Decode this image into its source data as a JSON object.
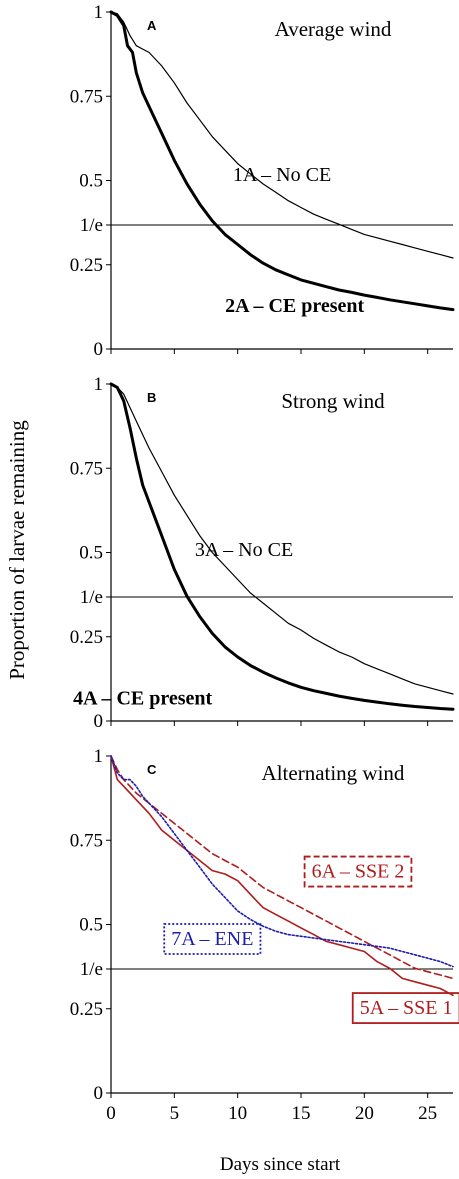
{
  "ylabel": "Proportion of larvae remaining",
  "xlabel": "Days since start",
  "x_ticks": [
    0,
    5,
    10,
    15,
    20,
    25
  ],
  "chart_data": [
    {
      "type": "line",
      "panel_letter": "A",
      "title": "Average wind",
      "xlim": [
        0,
        27
      ],
      "ylim": [
        0,
        1
      ],
      "y_ticks": [
        {
          "label": "1",
          "value": 1
        },
        {
          "label": "0.75",
          "value": 0.75
        },
        {
          "label": "0.5",
          "value": 0.5
        },
        {
          "label": "1/e",
          "value": 0.368
        },
        {
          "label": "0.25",
          "value": 0.25
        },
        {
          "label": "0",
          "value": 0
        }
      ],
      "reference_line": 0.368,
      "grid": false,
      "series": [
        {
          "name": "1A – No CE",
          "color": "#000000",
          "width": 1.2,
          "dash": "",
          "x": [
            0,
            0.5,
            1,
            1.5,
            2,
            2.5,
            3,
            4,
            5,
            6,
            7,
            8,
            9,
            10,
            11,
            12,
            13,
            14,
            15,
            16,
            17,
            18,
            19,
            20,
            21,
            22,
            23,
            24,
            25,
            26,
            27
          ],
          "y": [
            1,
            0.995,
            0.97,
            0.93,
            0.9,
            0.89,
            0.88,
            0.84,
            0.79,
            0.73,
            0.68,
            0.63,
            0.59,
            0.55,
            0.52,
            0.49,
            0.465,
            0.44,
            0.42,
            0.4,
            0.385,
            0.37,
            0.355,
            0.34,
            0.33,
            0.32,
            0.31,
            0.3,
            0.29,
            0.28,
            0.27
          ]
        },
        {
          "name": "2A – CE present",
          "color": "#000000",
          "width": 3,
          "dash": "",
          "x": [
            0,
            0.5,
            1,
            1.3,
            1.7,
            2,
            2.5,
            3,
            4,
            5,
            6,
            7,
            8,
            9,
            10,
            11,
            12,
            13,
            14,
            15,
            16,
            17,
            18,
            19,
            20,
            21,
            22,
            23,
            24,
            25,
            26,
            27
          ],
          "y": [
            1,
            0.99,
            0.96,
            0.9,
            0.88,
            0.82,
            0.76,
            0.72,
            0.64,
            0.56,
            0.49,
            0.43,
            0.38,
            0.34,
            0.31,
            0.28,
            0.255,
            0.235,
            0.22,
            0.205,
            0.195,
            0.185,
            0.175,
            0.168,
            0.16,
            0.153,
            0.146,
            0.14,
            0.134,
            0.128,
            0.122,
            0.117
          ]
        }
      ],
      "annotations": [
        {
          "text": "1A – No CE",
          "x": 13.5,
          "y": 0.52,
          "bold": false
        },
        {
          "text": "2A – CE present",
          "x": 14.5,
          "y": 0.13,
          "bold": true
        }
      ]
    },
    {
      "type": "line",
      "panel_letter": "B",
      "title": "Strong wind",
      "xlim": [
        0,
        27
      ],
      "ylim": [
        0,
        1
      ],
      "y_ticks": [
        {
          "label": "1",
          "value": 1
        },
        {
          "label": "0.75",
          "value": 0.75
        },
        {
          "label": "0.5",
          "value": 0.5
        },
        {
          "label": "1/e",
          "value": 0.368
        },
        {
          "label": "0.25",
          "value": 0.25
        },
        {
          "label": "0",
          "value": 0
        }
      ],
      "reference_line": 0.368,
      "grid": false,
      "series": [
        {
          "name": "3A – No CE",
          "color": "#000000",
          "width": 1.2,
          "dash": "",
          "x": [
            0,
            0.5,
            1,
            1.5,
            2,
            3,
            4,
            5,
            6,
            7,
            8,
            9,
            10,
            11,
            12,
            13,
            14,
            15,
            16,
            17,
            18,
            19,
            20,
            21,
            22,
            23,
            24,
            25,
            26,
            27
          ],
          "y": [
            1,
            0.99,
            0.97,
            0.93,
            0.89,
            0.81,
            0.74,
            0.67,
            0.61,
            0.55,
            0.5,
            0.46,
            0.42,
            0.38,
            0.35,
            0.32,
            0.29,
            0.27,
            0.245,
            0.225,
            0.205,
            0.19,
            0.17,
            0.155,
            0.14,
            0.125,
            0.11,
            0.1,
            0.09,
            0.08
          ]
        },
        {
          "name": "4A – CE present",
          "color": "#000000",
          "width": 3,
          "dash": "",
          "x": [
            0,
            0.5,
            1,
            1.5,
            2,
            2.5,
            3,
            4,
            5,
            6,
            7,
            8,
            9,
            10,
            11,
            12,
            13,
            14,
            15,
            16,
            17,
            18,
            19,
            20,
            21,
            22,
            23,
            24,
            25,
            26,
            27
          ],
          "y": [
            1,
            0.99,
            0.95,
            0.87,
            0.78,
            0.7,
            0.65,
            0.55,
            0.45,
            0.37,
            0.31,
            0.26,
            0.22,
            0.19,
            0.165,
            0.145,
            0.128,
            0.113,
            0.1,
            0.09,
            0.082,
            0.074,
            0.067,
            0.061,
            0.056,
            0.051,
            0.047,
            0.043,
            0.04,
            0.037,
            0.035
          ]
        }
      ],
      "annotations": [
        {
          "text": "3A – No CE",
          "x": 10.5,
          "y": 0.51,
          "bold": false
        },
        {
          "text": "4A – CE present",
          "x": 2.5,
          "y": 0.07,
          "bold": true
        }
      ]
    },
    {
      "type": "line",
      "panel_letter": "C",
      "title": "Alternating wind",
      "xlim": [
        0,
        27
      ],
      "ylim": [
        0,
        1
      ],
      "y_ticks": [
        {
          "label": "1",
          "value": 1
        },
        {
          "label": "0.75",
          "value": 0.75
        },
        {
          "label": "0.5",
          "value": 0.5
        },
        {
          "label": "1/e",
          "value": 0.368
        },
        {
          "label": "0.25",
          "value": 0.25
        },
        {
          "label": "0",
          "value": 0
        }
      ],
      "reference_line": 0.368,
      "grid": false,
      "series": [
        {
          "name": "5A – SSE 1",
          "color": "#b01c1c",
          "width": 1.6,
          "dash": "",
          "box": "solid",
          "x": [
            0,
            0.5,
            1,
            2,
            3,
            4,
            5,
            6,
            7,
            8,
            9,
            10,
            11,
            12,
            13,
            14,
            15,
            16,
            17,
            18,
            19,
            20,
            21,
            22,
            23,
            24,
            25,
            26,
            27
          ],
          "y": [
            1,
            0.93,
            0.91,
            0.87,
            0.83,
            0.78,
            0.75,
            0.72,
            0.69,
            0.66,
            0.65,
            0.63,
            0.59,
            0.55,
            0.53,
            0.51,
            0.49,
            0.47,
            0.45,
            0.44,
            0.43,
            0.42,
            0.39,
            0.37,
            0.34,
            0.33,
            0.32,
            0.31,
            0.29
          ]
        },
        {
          "name": "6A – SSE 2",
          "color": "#b01c1c",
          "width": 1.6,
          "dash": "7,4",
          "box": "dashed",
          "x": [
            0,
            0.5,
            1,
            2,
            3,
            4,
            5,
            6,
            7,
            8,
            9,
            10,
            11,
            12,
            13,
            14,
            15,
            16,
            17,
            18,
            19,
            20,
            21,
            22,
            23,
            24,
            25,
            26,
            27
          ],
          "y": [
            1,
            0.96,
            0.93,
            0.89,
            0.86,
            0.83,
            0.8,
            0.77,
            0.74,
            0.71,
            0.69,
            0.67,
            0.64,
            0.61,
            0.59,
            0.57,
            0.55,
            0.53,
            0.51,
            0.49,
            0.47,
            0.45,
            0.43,
            0.41,
            0.39,
            0.37,
            0.36,
            0.35,
            0.34
          ]
        },
        {
          "name": "7A – ENE",
          "color": "#1c1cb0",
          "width": 1.6,
          "dash": "2,2",
          "box": "dotted",
          "x": [
            0,
            0.5,
            1,
            1.5,
            2,
            2.5,
            3,
            4,
            5,
            6,
            7,
            8,
            9,
            10,
            11,
            12,
            13,
            14,
            15,
            16,
            17,
            18,
            19,
            20,
            21,
            22,
            23,
            24,
            25,
            26,
            27
          ],
          "y": [
            1,
            0.95,
            0.93,
            0.93,
            0.91,
            0.88,
            0.86,
            0.82,
            0.77,
            0.72,
            0.67,
            0.62,
            0.58,
            0.54,
            0.515,
            0.495,
            0.48,
            0.47,
            0.465,
            0.46,
            0.455,
            0.45,
            0.445,
            0.44,
            0.435,
            0.43,
            0.42,
            0.41,
            0.4,
            0.39,
            0.375
          ]
        }
      ],
      "annotations": [
        {
          "text": "6A – SSE 2",
          "x": 19.5,
          "y": 0.66,
          "bold": false,
          "box": "dashed",
          "color": "#b01c1c"
        },
        {
          "text": "7A – ENE",
          "x": 8,
          "y": 0.46,
          "bold": false,
          "box": "dotted",
          "color": "#1c1cb0"
        },
        {
          "text": "5A – SSE 1",
          "x": 23.3,
          "y": 0.255,
          "bold": false,
          "box": "solid",
          "color": "#b01c1c"
        }
      ]
    }
  ]
}
